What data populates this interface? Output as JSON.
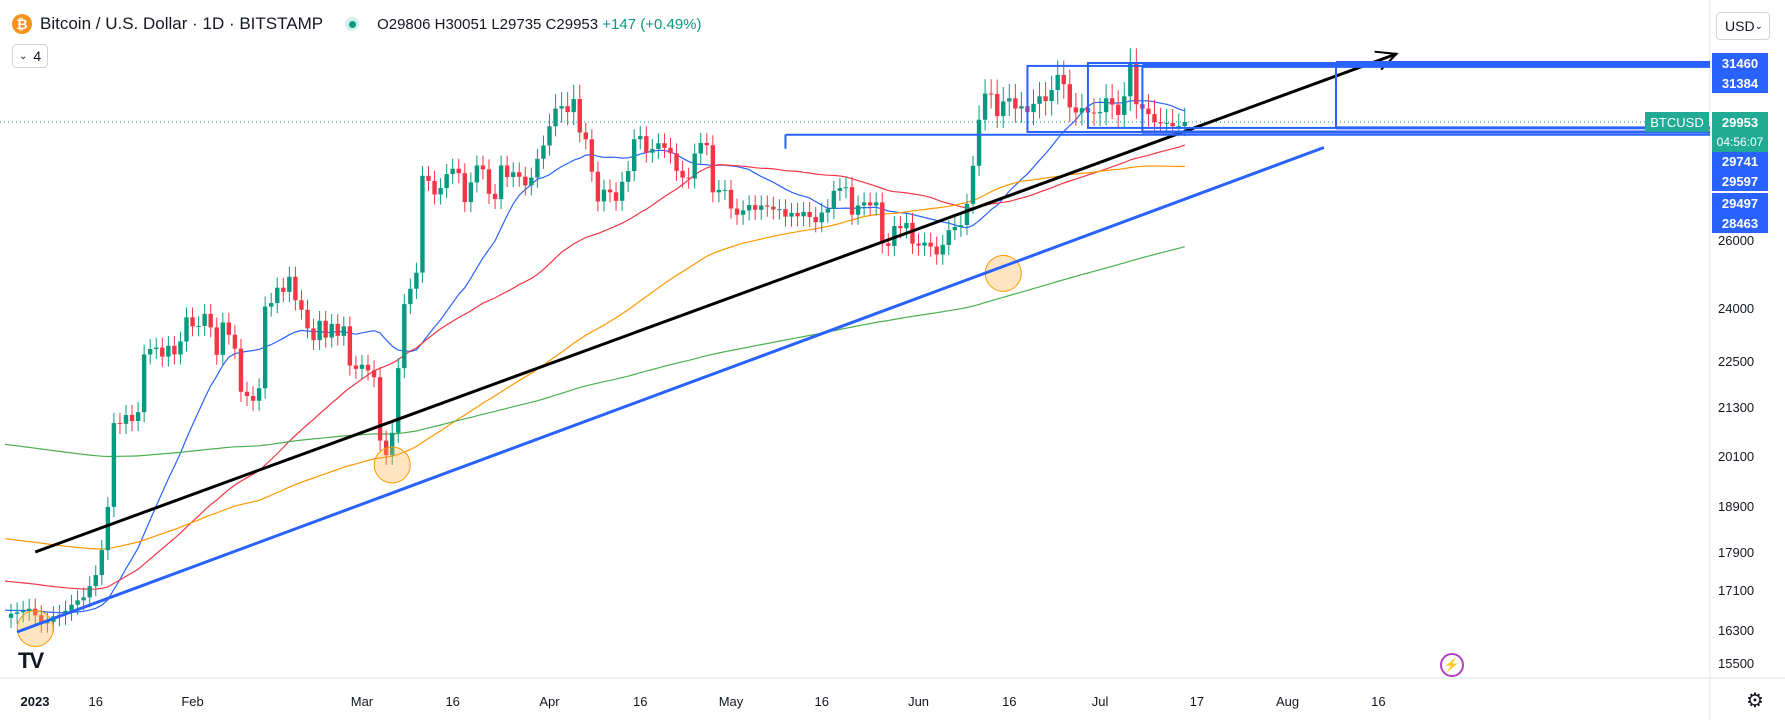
{
  "header": {
    "coin_glyph": "₿",
    "title": "Bitcoin / U.S. Dollar · 1D · BITSTAMP",
    "ohlc": "O29806 H30051 L29735 C29953",
    "change": "+147 (+0.49%)",
    "indicators_count": "4"
  },
  "currency_selector": {
    "label": "USD",
    "icon": "chevron-down-icon"
  },
  "logo": "TV",
  "chart_data": {
    "type": "candlestick",
    "symbol": "BTCUSD",
    "ylim": [
      15000,
      33000
    ],
    "price_ticks": [
      15500,
      16300,
      17100,
      17900,
      18900,
      20100,
      21300,
      22500,
      24000,
      26000
    ],
    "time_ticks": [
      {
        "label": "2023",
        "day": 0,
        "bold": true
      },
      {
        "label": "16",
        "day": 15
      },
      {
        "label": "Feb",
        "day": 31
      },
      {
        "label": "Mar",
        "day": 59
      },
      {
        "label": "16",
        "day": 74
      },
      {
        "label": "Apr",
        "day": 90
      },
      {
        "label": "16",
        "day": 105
      },
      {
        "label": "May",
        "day": 120
      },
      {
        "label": "16",
        "day": 135
      },
      {
        "label": "Jun",
        "day": 151
      },
      {
        "label": "16",
        "day": 166
      },
      {
        "label": "Jul",
        "day": 181
      },
      {
        "label": "17",
        "day": 197
      },
      {
        "label": "Aug",
        "day": 212
      },
      {
        "label": "16",
        "day": 227
      }
    ],
    "last_price": 29953,
    "countdown": "04:56:07",
    "price_badges": [
      {
        "label": "31460",
        "value": 31460
      },
      {
        "label": "31384",
        "value": 31384
      },
      {
        "label": "29741",
        "value": 29741
      },
      {
        "label": "29597",
        "value": 29597
      },
      {
        "label": "29497",
        "value": 29497
      },
      {
        "label": "28463",
        "value": 28463
      }
    ],
    "closes": [
      16540,
      16620,
      16650,
      16680,
      16720,
      16590,
      16430,
      16460,
      16570,
      16600,
      16680,
      16800,
      16890,
      16950,
      17180,
      17410,
      17940,
      18880,
      20900,
      20880,
      21100,
      20950,
      21170,
      22680,
      22830,
      22870,
      22620,
      22920,
      22680,
      23040,
      23730,
      23470,
      23480,
      23830,
      23440,
      22670,
      23580,
      23230,
      22840,
      21690,
      21580,
      21460,
      21780,
      24040,
      24140,
      24580,
      24460,
      24900,
      24220,
      23950,
      23410,
      23080,
      23630,
      23150,
      23540,
      23200,
      23470,
      22380,
      22290,
      22400,
      22250,
      22070,
      20470,
      20120,
      20660,
      22310,
      24110,
      24550,
      25020,
      28080,
      27910,
      27460,
      27670,
      28140,
      28320,
      28170,
      27210,
      27860,
      28430,
      28300,
      27480,
      27310,
      28430,
      28040,
      28200,
      28050,
      27760,
      28020,
      28660,
      29120,
      29800,
      30290,
      30350,
      30200,
      30530,
      29580,
      29340,
      28220,
      27230,
      27620,
      27530,
      27250,
      27880,
      28240,
      29340,
      29450,
      28870,
      29000,
      29200,
      29040,
      28850,
      28250,
      28020,
      27990,
      28840,
      29210,
      29130,
      27530,
      27610,
      27610,
      27000,
      26800,
      26940,
      27110,
      26960,
      27100,
      27060,
      26970,
      26980,
      26740,
      26860,
      26750,
      26890,
      26730,
      26560,
      26870,
      26990,
      27580,
      27670,
      27700,
      26800,
      27100,
      27200,
      27100,
      27200,
      25900,
      25820,
      26440,
      26370,
      26540,
      25890,
      25830,
      25920,
      25800,
      25560,
      25850,
      26310,
      26410,
      26470,
      27150,
      28420,
      30010,
      30670,
      30660,
      30100,
      30470,
      30550,
      30290,
      30350,
      30200,
      30410,
      30600,
      30480,
      30760,
      31150,
      30910,
      30320,
      30190,
      30300,
      30190,
      30170,
      30200,
      30550,
      30390,
      30130,
      30600,
      31470,
      30400,
      30290,
      30150,
      29950,
      29900,
      29920,
      29800,
      29806,
      29953
    ],
    "series": [
      {
        "name": "MA 20",
        "color": "#2962ff"
      },
      {
        "name": "MA 50",
        "color": "#f23645"
      },
      {
        "name": "MA 100",
        "color": "#ff9800"
      },
      {
        "name": "MA 200",
        "color": "#4caf50"
      }
    ],
    "annotations": {
      "black_trendline": {
        "from": {
          "day": 5,
          "price": 17900
        },
        "to": {
          "day": 230,
          "price": 31700
        },
        "color": "#000000"
      },
      "blue_trendline": {
        "from": {
          "day": 2,
          "price": 16250
        },
        "to": {
          "day": 218,
          "price": 29050
        },
        "color": "#2962ff"
      },
      "boxes": [
        {
          "from_day": 169,
          "to_day": 188,
          "top": 31384,
          "bottom": 29597
        },
        {
          "from_day": 179,
          "to_day": 220,
          "top": 31460,
          "bottom": 29741
        },
        {
          "from_day": 129,
          "to_day": 201,
          "top": 29497,
          "bottom": 29497
        }
      ],
      "circles": [
        {
          "day": 5,
          "price": 16330
        },
        {
          "day": 64,
          "price": 19880
        },
        {
          "day": 165,
          "price": 25000
        }
      ]
    },
    "colors": {
      "up": "#089981",
      "down": "#f23645",
      "accent": "#2962ff",
      "badge_last": "#22ab94",
      "badge_levels": "#2962ff"
    }
  }
}
